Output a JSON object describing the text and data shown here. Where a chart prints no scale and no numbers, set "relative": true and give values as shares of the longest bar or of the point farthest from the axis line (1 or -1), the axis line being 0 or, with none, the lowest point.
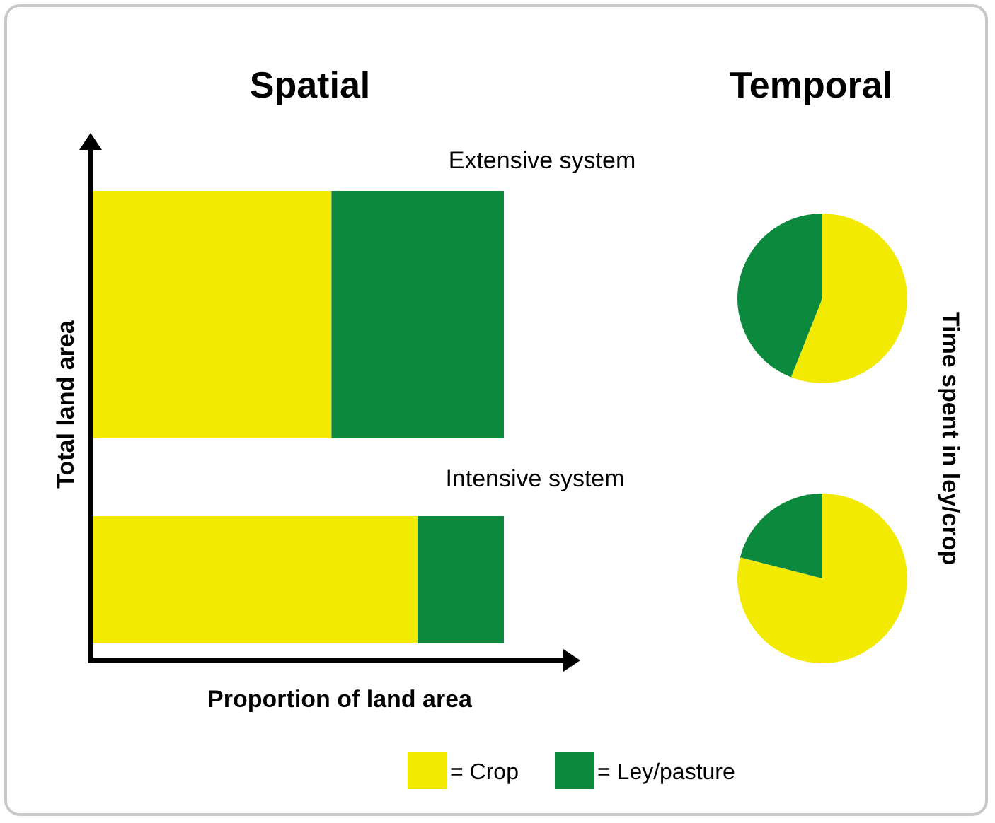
{
  "chart_data": [
    {
      "type": "bar",
      "orientation": "horizontal",
      "stacked": true,
      "relative": true,
      "title": "Spatial",
      "xlabel": "Proportion of land area",
      "ylabel": "Total land area",
      "categories": [
        "Extensive system",
        "Intensive system"
      ],
      "legend": "bottom",
      "series": [
        {
          "name": "= Crop",
          "color": "#f2ea00",
          "values": [
            0.58,
            0.79
          ]
        },
        {
          "name": "= Ley/pasture",
          "color": "#0b8a3e",
          "values": [
            0.42,
            0.21
          ]
        }
      ]
    },
    {
      "type": "pie",
      "title": "Temporal",
      "y2label": "Time spent in ley/crop",
      "categories": [
        null,
        null
      ],
      "values": [
        56,
        44
      ],
      "colors": [
        "#f2ea00",
        "#0b8a3e"
      ]
    },
    {
      "type": "pie",
      "categories": [
        null,
        null
      ],
      "values": [
        79,
        21
      ],
      "colors": [
        "#f2ea00",
        "#0b8a3e"
      ]
    }
  ]
}
